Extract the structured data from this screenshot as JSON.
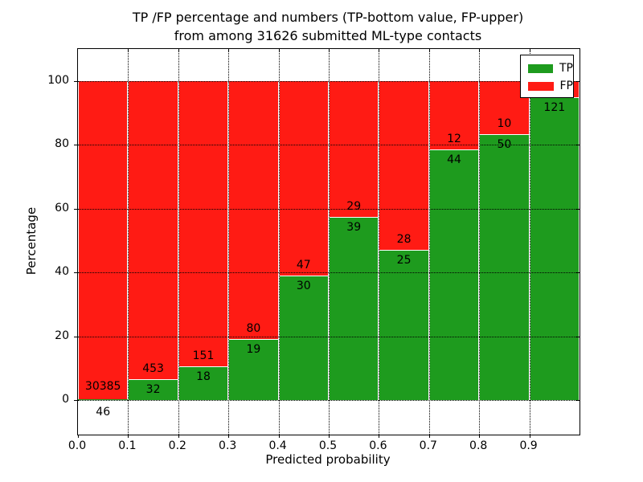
{
  "title": {
    "line1": "TP /FP percentage and numbers (TP-bottom value, FP-upper)",
    "line2": "from among 31626 submitted ML-type contacts"
  },
  "axes": {
    "x_label": "Predicted probability",
    "y_label": "Percentage",
    "x_ticks": [
      "0.0",
      "0.1",
      "0.2",
      "0.3",
      "0.4",
      "0.5",
      "0.6",
      "0.7",
      "0.8",
      "0.9"
    ],
    "y_ticks": [
      "0",
      "20",
      "40",
      "60",
      "80",
      "100"
    ]
  },
  "legend": [
    {
      "label": "TP",
      "color": "#1e9b1e"
    },
    {
      "label": "FP",
      "color": "#ff1b14"
    }
  ],
  "colors": {
    "tp": "#1e9b1e",
    "fp": "#ff1b14",
    "grid": "#000000"
  },
  "chart_data": {
    "type": "bar",
    "stacked": true,
    "normalized_to_percent": true,
    "title": "TP /FP percentage and numbers (TP-bottom value, FP-upper) from among 31626 submitted ML-type contacts",
    "xlabel": "Predicted probability",
    "ylabel": "Percentage",
    "xlim": [
      0.0,
      1.0
    ],
    "ylim_visible": [
      0,
      100
    ],
    "grid": true,
    "legend_position": "upper right",
    "total_contacts": 31626,
    "bins": [
      {
        "range": "0.0-0.1",
        "tp": 46,
        "fp": 30385,
        "tp_pct": 0.15,
        "tp_label": "46",
        "fp_label": "30385",
        "tp_label_below_axis": true
      },
      {
        "range": "0.1-0.2",
        "tp": 32,
        "fp": 453,
        "tp_pct": 6.6,
        "tp_label": "32",
        "fp_label": "453"
      },
      {
        "range": "0.2-0.3",
        "tp": 18,
        "fp": 151,
        "tp_pct": 10.65,
        "tp_label": "18",
        "fp_label": "151"
      },
      {
        "range": "0.3-0.4",
        "tp": 19,
        "fp": 80,
        "tp_pct": 19.19,
        "tp_label": "19",
        "fp_label": "80"
      },
      {
        "range": "0.4-0.5",
        "tp": 30,
        "fp": 47,
        "tp_pct": 38.96,
        "tp_label": "30",
        "fp_label": "47"
      },
      {
        "range": "0.5-0.6",
        "tp": 39,
        "fp": 29,
        "tp_pct": 57.35,
        "tp_label": "39",
        "fp_label": "29"
      },
      {
        "range": "0.6-0.7",
        "tp": 25,
        "fp": 28,
        "tp_pct": 47.17,
        "tp_label": "25",
        "fp_label": "28"
      },
      {
        "range": "0.7-0.8",
        "tp": 44,
        "fp": 12,
        "tp_pct": 78.57,
        "tp_label": "44",
        "fp_label": "12"
      },
      {
        "range": "0.8-0.9",
        "tp": 50,
        "fp": 10,
        "tp_pct": 83.33,
        "tp_label": "50",
        "fp_label": "10"
      },
      {
        "range": "0.9-1.0",
        "tp": 121,
        "fp": null,
        "tp_pct": 95.0,
        "tp_label": "121",
        "fp_label": null
      }
    ]
  }
}
